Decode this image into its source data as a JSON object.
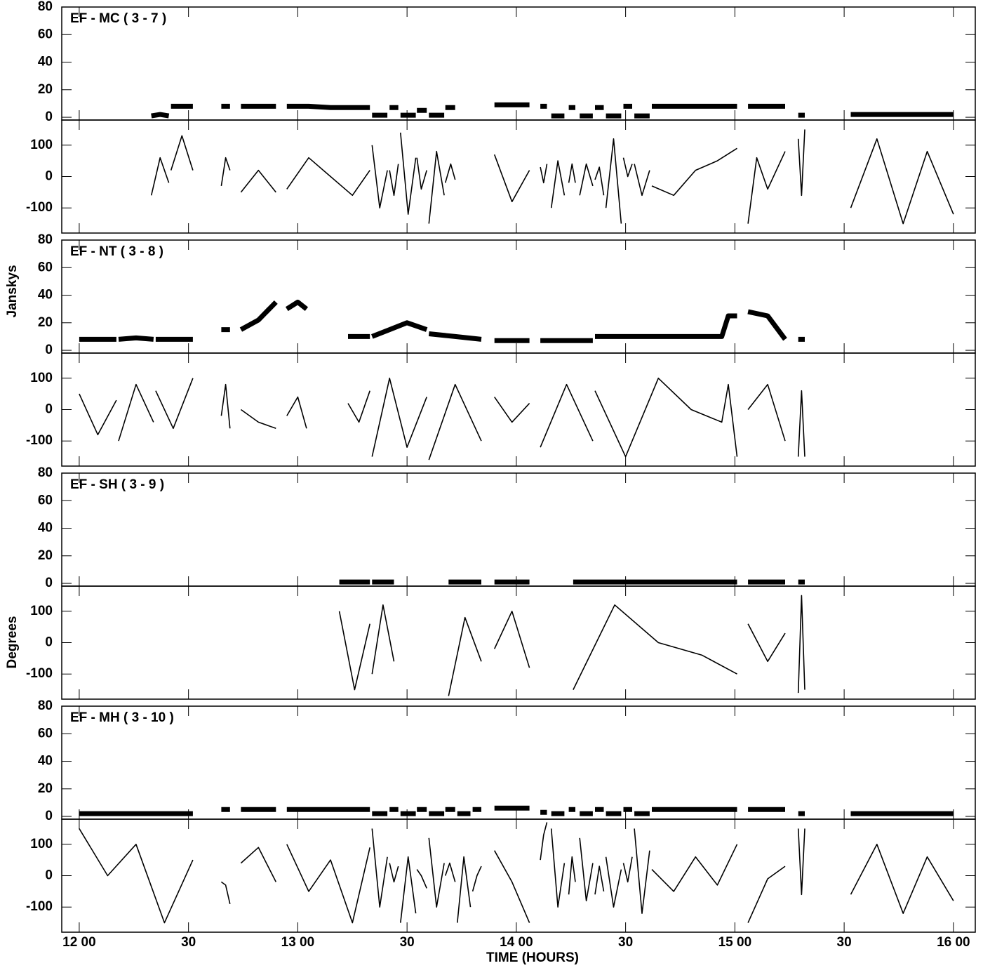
{
  "chart_data": [
    {
      "type": "line",
      "title": "EF - MC ( 3 - 7 )",
      "xlim": [
        11.92,
        16.1
      ],
      "xticks": [
        12,
        12.5,
        13,
        13.5,
        14,
        14.5,
        15,
        15.5,
        16
      ],
      "x": [
        12.33,
        12.37,
        12.41,
        12.415,
        12.42,
        12.47,
        12.52,
        12.6,
        12.65,
        12.67,
        12.69,
        12.72,
        12.74,
        12.82,
        12.9,
        12.93,
        12.95,
        13.05,
        13.15,
        13.25,
        13.33,
        13.335,
        13.34,
        13.375,
        13.41,
        13.415,
        13.42,
        13.44,
        13.46,
        13.465,
        13.47,
        13.505,
        13.54,
        13.542,
        13.545,
        13.565,
        13.59,
        13.595,
        13.6,
        13.635,
        13.67,
        13.672,
        13.675,
        13.7,
        13.72,
        13.8,
        13.9,
        13.98,
        14.06,
        14.08,
        14.11,
        14.125,
        14.14,
        14.15,
        14.16,
        14.19,
        14.22,
        14.23,
        14.24,
        14.255,
        14.27,
        14.28,
        14.29,
        14.32,
        14.35,
        14.355,
        14.36,
        14.38,
        14.4,
        14.405,
        14.41,
        14.445,
        14.48,
        14.485,
        14.49,
        14.51,
        14.53,
        14.535,
        14.54,
        14.575,
        14.61,
        14.615,
        14.62,
        14.72,
        14.82,
        14.92,
        15.01,
        15.04,
        15.06,
        15.1,
        15.15,
        15.23,
        15.26,
        15.29,
        15.305,
        15.32,
        15.4,
        15.53,
        15.65,
        15.77,
        15.88,
        16
      ],
      "amplitude": {
        "ylim": [
          -2,
          80
        ],
        "yticks": [
          0,
          20,
          40,
          60,
          80
        ],
        "values": [
          1,
          2,
          1,
          null,
          8,
          8,
          8,
          null,
          8,
          8,
          8,
          null,
          8,
          8,
          8,
          null,
          8,
          8,
          7,
          7,
          7,
          null,
          1.5,
          1.5,
          1.5,
          null,
          7,
          7,
          7,
          null,
          1.5,
          1.5,
          1.5,
          null,
          5,
          5,
          5,
          null,
          1.5,
          1.5,
          1.5,
          null,
          7,
          7,
          7,
          null,
          9,
          9,
          9,
          null,
          8,
          8,
          8,
          null,
          1,
          1,
          1,
          null,
          7,
          7,
          7,
          null,
          1,
          1,
          1,
          null,
          7,
          7,
          7,
          null,
          1,
          1,
          1,
          null,
          8,
          8,
          8,
          null,
          1,
          1,
          1,
          null,
          8,
          8,
          8,
          8,
          8,
          null,
          8,
          8,
          8,
          8,
          null,
          1.5,
          1.5,
          1.5,
          null,
          2,
          2,
          2,
          2,
          2
        ]
      },
      "phase": {
        "ylim": [
          -180,
          180
        ],
        "yticks": [
          100,
          0,
          -100
        ],
        "values": [
          -60,
          60,
          -20,
          null,
          20,
          130,
          20,
          null,
          -30,
          60,
          20,
          null,
          -50,
          20,
          -50,
          null,
          -40,
          60,
          0,
          -60,
          20,
          null,
          100,
          -100,
          20,
          null,
          20,
          -60,
          40,
          null,
          140,
          -120,
          60,
          null,
          60,
          -40,
          20,
          null,
          -150,
          80,
          -60,
          null,
          -20,
          40,
          -10,
          null,
          70,
          -80,
          20,
          null,
          30,
          -20,
          40,
          null,
          -100,
          50,
          -60,
          null,
          -20,
          40,
          -20,
          null,
          -60,
          40,
          -30,
          null,
          -10,
          30,
          -60,
          null,
          -100,
          120,
          -150,
          null,
          60,
          0,
          40,
          null,
          40,
          -60,
          20,
          null,
          -30,
          -60,
          20,
          50,
          90,
          null,
          -150,
          60,
          -40,
          80,
          null,
          120,
          -60,
          150,
          null,
          -100,
          120,
          -150,
          80,
          -120
        ]
      }
    },
    {
      "type": "line",
      "title": "EF - NT ( 3 - 8 )",
      "ylabel": "Janskys",
      "xlim": [
        11.92,
        16.1
      ],
      "xticks": [
        12,
        12.5,
        13,
        13.5,
        14,
        14.5,
        15,
        15.5,
        16
      ],
      "x": [
        12.0,
        12.085,
        12.17,
        12.175,
        12.18,
        12.26,
        12.34,
        12.345,
        12.35,
        12.43,
        12.52,
        12.6,
        12.65,
        12.67,
        12.69,
        12.72,
        12.74,
        12.82,
        12.9,
        12.93,
        12.95,
        13.0,
        13.04,
        13.1,
        13.23,
        13.28,
        13.33,
        13.335,
        13.34,
        13.42,
        13.5,
        13.59,
        13.595,
        13.6,
        13.72,
        13.84,
        13.87,
        13.9,
        13.98,
        14.06,
        14.08,
        14.11,
        14.23,
        14.35,
        14.355,
        14.36,
        14.5,
        14.65,
        14.8,
        14.94,
        14.97,
        15.01,
        15.04,
        15.06,
        15.15,
        15.23,
        15.26,
        15.29,
        15.305,
        15.32
      ],
      "amplitude": {
        "ylim": [
          -2,
          80
        ],
        "yticks": [
          0,
          20,
          40,
          60,
          80
        ],
        "values": [
          8,
          8,
          8,
          null,
          8,
          9,
          8,
          null,
          8,
          8,
          8,
          null,
          15,
          15,
          15,
          null,
          15,
          22,
          35,
          null,
          30,
          35,
          30,
          null,
          10,
          10,
          10,
          null,
          10,
          15,
          20,
          15,
          null,
          12,
          10,
          8,
          null,
          7,
          7,
          7,
          null,
          7,
          7,
          7,
          null,
          10,
          10,
          10,
          10,
          10,
          25,
          25,
          null,
          28,
          25,
          8,
          null,
          8,
          8,
          8
        ]
      },
      "phase": {
        "ylim": [
          -180,
          180
        ],
        "yticks": [
          100,
          0,
          -100
        ],
        "values": [
          50,
          -80,
          30,
          null,
          -100,
          80,
          -40,
          null,
          60,
          -60,
          100,
          null,
          -20,
          80,
          -60,
          null,
          0,
          -40,
          -60,
          null,
          -20,
          40,
          -60,
          null,
          20,
          -40,
          60,
          null,
          -150,
          100,
          -120,
          40,
          null,
          -160,
          80,
          -100,
          null,
          40,
          -40,
          20,
          null,
          -120,
          80,
          -100,
          null,
          60,
          -150,
          100,
          0,
          -40,
          80,
          -150,
          null,
          0,
          80,
          -100,
          null,
          -150,
          60,
          -150
        ]
      }
    },
    {
      "type": "line",
      "title": "EF - SH ( 3 - 9 )",
      "ylabel": "Degrees",
      "xlim": [
        11.92,
        16.1
      ],
      "xticks": [
        12,
        12.5,
        13,
        13.5,
        14,
        14.5,
        15,
        15.5,
        16
      ],
      "x": [
        13.19,
        13.26,
        13.33,
        13.335,
        13.34,
        13.39,
        13.44,
        13.6,
        13.69,
        13.765,
        13.84,
        13.87,
        13.9,
        13.98,
        14.06,
        14.15,
        14.26,
        14.45,
        14.65,
        14.85,
        15.01,
        15.04,
        15.06,
        15.15,
        15.23,
        15.26,
        15.29,
        15.305,
        15.32
      ],
      "amplitude": {
        "ylim": [
          -2,
          80
        ],
        "yticks": [
          0,
          20,
          40,
          60,
          80
        ],
        "values": [
          1,
          1,
          1,
          null,
          1,
          1,
          1,
          null,
          1,
          1,
          1,
          null,
          1,
          1,
          1,
          null,
          1,
          1,
          1,
          1,
          1,
          null,
          1,
          1,
          1,
          null,
          1,
          1,
          1
        ]
      },
      "phase": {
        "ylim": [
          -180,
          180
        ],
        "yticks": [
          100,
          0,
          -100
        ],
        "values": [
          100,
          -150,
          60,
          null,
          -100,
          120,
          -60,
          null,
          -170,
          80,
          -60,
          null,
          -20,
          100,
          -80,
          null,
          -150,
          120,
          0,
          -40,
          -100,
          null,
          60,
          -60,
          30,
          null,
          -160,
          150,
          -150
        ]
      }
    },
    {
      "type": "line",
      "title": "EF - MH ( 3 - 10 )",
      "xlabel": "TIME (HOURS)",
      "xlim": [
        11.92,
        16.1
      ],
      "xticks": [
        {
          "value": 12,
          "label": "12 00"
        },
        {
          "value": 12.5,
          "label": "30"
        },
        {
          "value": 13,
          "label": "13 00"
        },
        {
          "value": 13.5,
          "label": "30"
        },
        {
          "value": 14,
          "label": "14 00"
        },
        {
          "value": 14.5,
          "label": "30"
        },
        {
          "value": 15,
          "label": "15 00"
        },
        {
          "value": 15.5,
          "label": "30"
        },
        {
          "value": 16,
          "label": "16 00"
        }
      ],
      "x": [
        12.0,
        12.13,
        12.26,
        12.39,
        12.52,
        12.6,
        12.65,
        12.67,
        12.69,
        12.72,
        12.74,
        12.82,
        12.9,
        12.93,
        12.95,
        13.05,
        13.15,
        13.25,
        13.33,
        13.335,
        13.34,
        13.375,
        13.41,
        13.415,
        13.42,
        13.44,
        13.46,
        13.465,
        13.47,
        13.505,
        13.54,
        13.542,
        13.545,
        13.565,
        13.59,
        13.595,
        13.6,
        13.635,
        13.67,
        13.672,
        13.675,
        13.695,
        13.72,
        13.725,
        13.73,
        13.76,
        13.79,
        13.795,
        13.8,
        13.82,
        13.84,
        13.87,
        13.9,
        13.98,
        14.06,
        14.08,
        14.11,
        14.125,
        14.14,
        14.15,
        14.16,
        14.19,
        14.22,
        14.23,
        14.24,
        14.255,
        14.27,
        14.28,
        14.29,
        14.32,
        14.35,
        14.355,
        14.36,
        14.38,
        14.4,
        14.405,
        14.41,
        14.445,
        14.48,
        14.485,
        14.49,
        14.51,
        14.53,
        14.535,
        14.54,
        14.575,
        14.61,
        14.615,
        14.62,
        14.72,
        14.82,
        14.92,
        15.01,
        15.04,
        15.06,
        15.15,
        15.23,
        15.26,
        15.29,
        15.305,
        15.32,
        15.4,
        15.53,
        15.65,
        15.77,
        15.88,
        16
      ],
      "amplitude": {
        "ylim": [
          -2,
          80
        ],
        "yticks": [
          0,
          20,
          40,
          60,
          80
        ],
        "values": [
          2,
          2,
          2,
          2,
          2,
          null,
          5,
          5,
          5,
          null,
          5,
          5,
          5,
          null,
          5,
          5,
          5,
          5,
          5,
          null,
          2,
          2,
          2,
          null,
          5,
          5,
          5,
          null,
          2,
          2,
          2,
          null,
          5,
          5,
          5,
          null,
          2,
          2,
          2,
          null,
          5,
          5,
          5,
          null,
          2,
          2,
          2,
          null,
          5,
          5,
          5,
          null,
          6,
          6,
          6,
          null,
          3,
          3,
          3,
          null,
          2,
          2,
          2,
          null,
          5,
          5,
          5,
          null,
          2,
          2,
          2,
          null,
          5,
          5,
          5,
          null,
          2,
          2,
          2,
          null,
          5,
          5,
          5,
          null,
          2,
          2,
          2,
          null,
          5,
          5,
          5,
          5,
          5,
          null,
          5,
          5,
          5,
          null,
          2,
          2,
          2,
          null,
          2,
          2,
          2,
          2,
          2
        ]
      },
      "phase": {
        "ylim": [
          -180,
          180
        ],
        "yticks": [
          100,
          0,
          -100
        ],
        "values": [
          150,
          0,
          100,
          -150,
          50,
          null,
          -20,
          -30,
          -90,
          null,
          40,
          90,
          -20,
          null,
          100,
          -50,
          50,
          -150,
          90,
          null,
          150,
          -100,
          60,
          null,
          40,
          -20,
          30,
          null,
          -150,
          60,
          -120,
          null,
          20,
          0,
          -40,
          null,
          120,
          -100,
          40,
          null,
          0,
          40,
          -20,
          null,
          -150,
          60,
          -100,
          null,
          -50,
          0,
          30,
          null,
          80,
          -20,
          -150,
          null,
          50,
          130,
          170,
          null,
          150,
          -100,
          40,
          null,
          -60,
          60,
          -20,
          null,
          120,
          -80,
          40,
          null,
          -60,
          30,
          -50,
          null,
          60,
          -100,
          20,
          null,
          40,
          -20,
          60,
          null,
          150,
          -120,
          80,
          null,
          20,
          -50,
          60,
          -30,
          100,
          null,
          -150,
          -10,
          30,
          null,
          150,
          -60,
          150,
          null,
          -60,
          100,
          -120,
          60,
          -80
        ]
      }
    }
  ]
}
